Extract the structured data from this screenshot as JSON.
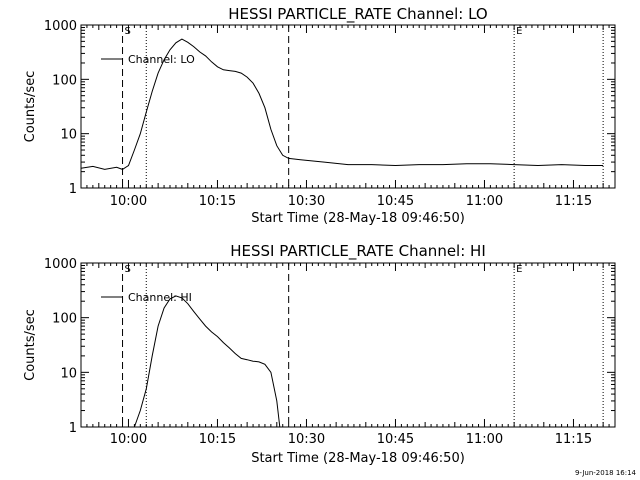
{
  "footer": {
    "timestamp": "9-Jun-2018 16:14"
  },
  "chart_data": [
    {
      "type": "line",
      "title": "HESSI PARTICLE_RATE Channel: LO",
      "xlabel": "Start Time (28-May-18 09:46:50)",
      "ylabel": "Counts/sec",
      "yscale": "log",
      "xlim": [
        "09:52",
        "11:22"
      ],
      "ylim": [
        1,
        1000
      ],
      "x_ticks": [
        "10:00",
        "10:15",
        "10:30",
        "10:45",
        "11:00",
        "11:15"
      ],
      "y_ticks": [
        "1",
        "10",
        "100",
        "1000"
      ],
      "legend": {
        "entries": [
          "Channel: LO"
        ],
        "placement": "top-left"
      },
      "markers": [
        {
          "label": "S",
          "time": "09:59"
        },
        {
          "label": "E",
          "time": "11:05"
        }
      ],
      "vlines_dashed": [
        "09:59",
        "10:27"
      ],
      "vlines_dotted": [
        "10:03",
        "11:05",
        "11:20"
      ],
      "series": [
        {
          "color": "#000000",
          "x": [
            "09:52",
            "09:54",
            "09:56",
            "09:58",
            "09:59",
            "10:00",
            "10:01",
            "10:02",
            "10:03",
            "10:04",
            "10:05",
            "10:06",
            "10:07",
            "10:08",
            "10:09",
            "10:10",
            "10:11",
            "10:12",
            "10:13",
            "10:14",
            "10:15",
            "10:16",
            "10:17",
            "10:18",
            "10:19",
            "10:20",
            "10:21",
            "10:22",
            "10:23",
            "10:24",
            "10:25",
            "10:26",
            "10:27",
            "10:29",
            "10:33",
            "10:37",
            "10:41",
            "10:45",
            "10:49",
            "10:53",
            "10:57",
            "11:01",
            "11:05",
            "11:09",
            "11:13",
            "11:17",
            "11:20"
          ],
          "values": [
            2.3,
            2.5,
            2.2,
            2.4,
            2.2,
            2.6,
            5,
            10,
            25,
            60,
            130,
            230,
            350,
            470,
            550,
            480,
            400,
            320,
            270,
            210,
            170,
            150,
            145,
            140,
            130,
            110,
            85,
            55,
            30,
            12,
            6,
            4,
            3.5,
            3.3,
            3.0,
            2.7,
            2.7,
            2.6,
            2.7,
            2.7,
            2.8,
            2.8,
            2.7,
            2.6,
            2.7,
            2.6,
            2.6
          ]
        }
      ]
    },
    {
      "type": "line",
      "title": "HESSI PARTICLE_RATE Channel: HI",
      "xlabel": "Start Time (28-May-18 09:46:50)",
      "ylabel": "Counts/sec",
      "yscale": "log",
      "xlim": [
        "09:52",
        "11:22"
      ],
      "ylim": [
        1,
        1000
      ],
      "x_ticks": [
        "10:00",
        "10:15",
        "10:30",
        "10:45",
        "11:00",
        "11:15"
      ],
      "y_ticks": [
        "1",
        "10",
        "100",
        "1000"
      ],
      "legend": {
        "entries": [
          "Channel: HI"
        ],
        "placement": "top-left"
      },
      "markers": [
        {
          "label": "S",
          "time": "09:59"
        },
        {
          "label": "E",
          "time": "11:05"
        }
      ],
      "vlines_dashed": [
        "09:59",
        "10:27"
      ],
      "vlines_dotted": [
        "10:03",
        "11:05",
        "11:20"
      ],
      "series": [
        {
          "color": "#000000",
          "x": [
            "10:01",
            "10:02",
            "10:03",
            "10:04",
            "10:05",
            "10:06",
            "10:07",
            "10:08",
            "10:09",
            "10:10",
            "10:11",
            "10:12",
            "10:13",
            "10:14",
            "10:15",
            "10:16",
            "10:17",
            "10:18",
            "10:19",
            "10:20",
            "10:21",
            "10:22",
            "10:23",
            "10:24",
            "10:25",
            "10:25.5"
          ],
          "values": [
            1,
            2,
            5,
            20,
            70,
            150,
            220,
            250,
            230,
            180,
            130,
            95,
            70,
            55,
            45,
            35,
            28,
            22,
            18,
            17,
            16,
            15.5,
            14,
            10,
            3,
            1
          ]
        }
      ]
    }
  ]
}
